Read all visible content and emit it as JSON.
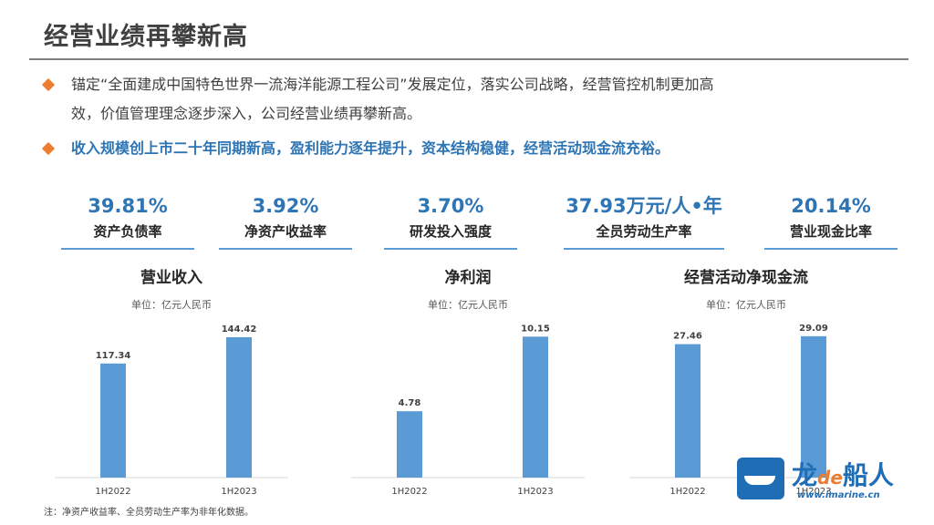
{
  "page": {
    "title": "经营业绩再攀新高",
    "bullets": [
      {
        "line1": "锚定“全面建成中国特色世界一流海洋能源工程公司”发展定位，落实公司战略，经营管控机制更加高",
        "line2": "效，价值管理理念逐步深入，公司经营业绩再攀新高。"
      },
      {
        "line1": "收入规模创上市二十年同期新高，盈利能力逐年提升，资本结构稳健，经营活动现金流充裕。"
      }
    ]
  },
  "kpis": [
    {
      "value": "39.81%",
      "label": "资产负债率"
    },
    {
      "value": "3.92%",
      "label": "净资产收益率"
    },
    {
      "value": "3.70%",
      "label": "研发投入强度"
    },
    {
      "value": "37.93万元/人•年",
      "label": "全员劳动生产率"
    },
    {
      "value": "20.14%",
      "label": "营业现金比率"
    }
  ],
  "chart_data": [
    {
      "type": "bar",
      "title": "营业收入",
      "unit": "单位：亿元人民币",
      "categories": [
        "1H2022",
        "1H2023"
      ],
      "values": [
        117.34,
        144.42
      ],
      "value_labels": [
        "117.34",
        "144.42"
      ],
      "ylim": [
        0,
        150
      ],
      "color": "#5b9bd5"
    },
    {
      "type": "bar",
      "title": "净利润",
      "unit": "单位：亿元人民币",
      "categories": [
        "1H2022",
        "1H2023"
      ],
      "values": [
        4.78,
        10.15
      ],
      "value_labels": [
        "4.78",
        "10.15"
      ],
      "ylim": [
        0,
        10.5
      ],
      "color": "#5b9bd5"
    },
    {
      "type": "bar",
      "title": "经营活动净现金流",
      "unit": "单位：亿元人民币",
      "categories": [
        "1H2022",
        "1H2023"
      ],
      "values": [
        27.46,
        29.09
      ],
      "value_labels": [
        "27.46",
        "29.09"
      ],
      "ylim": [
        0,
        30
      ],
      "color": "#5b9bd5"
    }
  ],
  "footnote": "注：净资产收益率、全员劳动生产率为非年化数据。",
  "logo": {
    "brand_a": "龙",
    "brand_de": "de",
    "brand_b": "船人",
    "url": "www.imarine.cn"
  }
}
